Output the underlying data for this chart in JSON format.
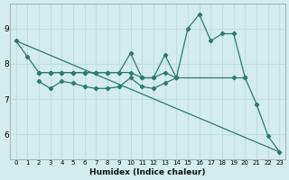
{
  "xlabel": "Humidex (Indice chaleur)",
  "bg_color": "#d4ecee",
  "line_color": "#2a7d6e",
  "grid_color": "#c0dfe0",
  "xlim": [
    -0.5,
    23.5
  ],
  "ylim": [
    5.3,
    9.7
  ],
  "yticks": [
    6,
    7,
    8,
    9
  ],
  "xticks": [
    0,
    1,
    2,
    3,
    4,
    5,
    6,
    7,
    8,
    9,
    10,
    11,
    12,
    13,
    14,
    15,
    16,
    17,
    18,
    19,
    20,
    21,
    22,
    23
  ],
  "line1_x": [
    0,
    1,
    2,
    3,
    4,
    5,
    6,
    7,
    8,
    9,
    10,
    11,
    12,
    13,
    14,
    15,
    16,
    17,
    18,
    19,
    20,
    21,
    22,
    23
  ],
  "line1_y": [
    8.65,
    8.2,
    7.75,
    7.75,
    7.75,
    7.75,
    7.75,
    7.75,
    7.75,
    7.75,
    8.3,
    7.6,
    7.6,
    8.25,
    7.6,
    9.0,
    9.4,
    8.65,
    8.85,
    8.85,
    7.6,
    6.85,
    5.95,
    5.5
  ],
  "line2_x": [
    2,
    3,
    4,
    5,
    6,
    7,
    8,
    9,
    10,
    11,
    12,
    13,
    14,
    19,
    20
  ],
  "line2_y": [
    7.75,
    7.75,
    7.75,
    7.75,
    7.75,
    7.75,
    7.75,
    7.75,
    7.75,
    7.6,
    7.6,
    7.75,
    7.6,
    7.6,
    7.6
  ],
  "line3_x": [
    2,
    3,
    4,
    5,
    6,
    7,
    8,
    9,
    10,
    11,
    12,
    13,
    14
  ],
  "line3_y": [
    7.5,
    7.3,
    7.5,
    7.45,
    7.35,
    7.3,
    7.3,
    7.35,
    7.6,
    7.35,
    7.3,
    7.45,
    7.6
  ],
  "line4_x": [
    0,
    23
  ],
  "line4_y": [
    8.65,
    5.5
  ]
}
